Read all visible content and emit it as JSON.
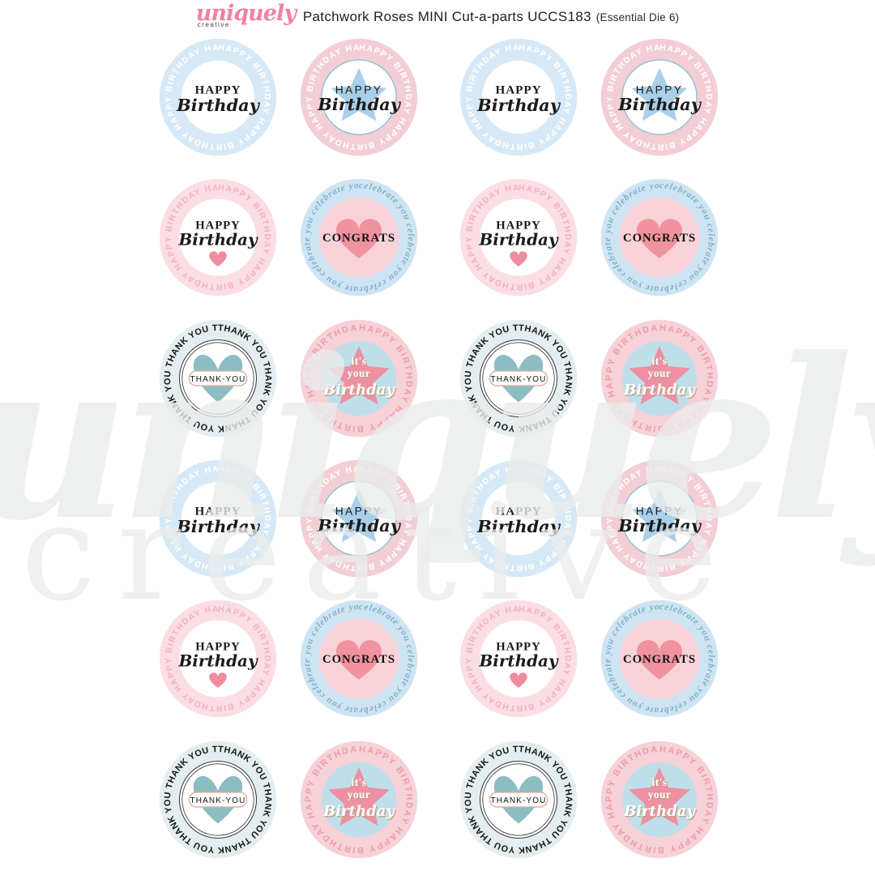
{
  "header": {
    "logo": {
      "brand": "uniquely",
      "sub": "creative"
    },
    "title": "Patchwork Roses MINI Cut-a-parts UCCS183",
    "subtitle": "(Essential Die 6)"
  },
  "watermark": {
    "line1": "uniquely",
    "line2": "creative"
  },
  "colors": {
    "brand_pink": "#f0839e",
    "title_black": "#1f1f1f",
    "watermark_gray": "#eaecec",
    "page_background": "#ffffff"
  },
  "badges": {
    "blue_birthday": {
      "bg": "#d7e9f6",
      "ring_text": "HAPPY BIRTHDAY",
      "ring_color": "#ffffff",
      "center_fill": "#ffffff",
      "lines": [
        {
          "text": "HAPPY",
          "color": "#1a1a1a"
        },
        {
          "text": "Birthday",
          "color": "#1a1a1a"
        }
      ]
    },
    "pink_star_birthday": {
      "bg": "#f3ced5",
      "ring_text": "HAPPY BIRTHDAY",
      "ring_color": "#ffffff",
      "center_fill": "#ffffff",
      "center_stroke": "#8fc2d4",
      "star_color": "#a9cfe9",
      "lines": [
        {
          "text": "HAPPY",
          "color": "#1a1a1a"
        },
        {
          "text": "Birthday",
          "color": "#1a1a1a"
        }
      ]
    },
    "pink_birthday_heart": {
      "bg": "#fbdee4",
      "ring_text": "HAPPY BIRTHDAY",
      "ring_color": "#f1b4c1",
      "center_fill": "#ffffff",
      "heart_color": "#ef8ca0",
      "lines": [
        {
          "text": "HAPPY",
          "color": "#1a1a1a"
        },
        {
          "text": "Birthday",
          "color": "#1a1a1a"
        }
      ]
    },
    "blue_congrats": {
      "bg": "#cfe4f3",
      "ring_text": "celebrate you",
      "ring_color": "#7db2c8",
      "center_fill": "#f8d2d8",
      "heart_color": "#f0939f",
      "lines": [
        {
          "text": "CONGRATS",
          "color": "#111111"
        }
      ]
    },
    "thank_you": {
      "bg": "#e4eef0",
      "ring_text": "THANK YOU",
      "ring_color": "#151515",
      "center_fill": "#ffffff",
      "center_stroke": "#3a3a3a",
      "heart_color": "#8cbdc2",
      "pill_border": "#dcab9b",
      "pill_fill": "#ffffff",
      "lines": [
        {
          "text": "THANK-YOU",
          "color": "#111111"
        }
      ]
    },
    "its_your_birthday": {
      "bg": "#f6d1d8",
      "ring_text": "HAPPY BIRTHDAY",
      "ring_color": "#ee9dac",
      "center_fill": "#bedfe9",
      "star_color": "#ee90a2",
      "shadow_color": "#c2a184",
      "lines": [
        {
          "text": "it's",
          "color": "#ffffff"
        },
        {
          "text": "your",
          "color": "#ffffff"
        },
        {
          "text": "Birthday",
          "color": "#ffffff"
        }
      ]
    }
  },
  "grid": {
    "rows": [
      [
        "blue_birthday",
        "pink_star_birthday",
        "blue_birthday",
        "pink_star_birthday"
      ],
      [
        "pink_birthday_heart",
        "blue_congrats",
        "pink_birthday_heart",
        "blue_congrats"
      ],
      [
        "thank_you",
        "its_your_birthday",
        "thank_you",
        "its_your_birthday"
      ],
      [
        "blue_birthday",
        "pink_star_birthday",
        "blue_birthday",
        "pink_star_birthday"
      ],
      [
        "pink_birthday_heart",
        "blue_congrats",
        "pink_birthday_heart",
        "blue_congrats"
      ],
      [
        "thank_you",
        "its_your_birthday",
        "thank_you",
        "its_your_birthday"
      ]
    ]
  }
}
